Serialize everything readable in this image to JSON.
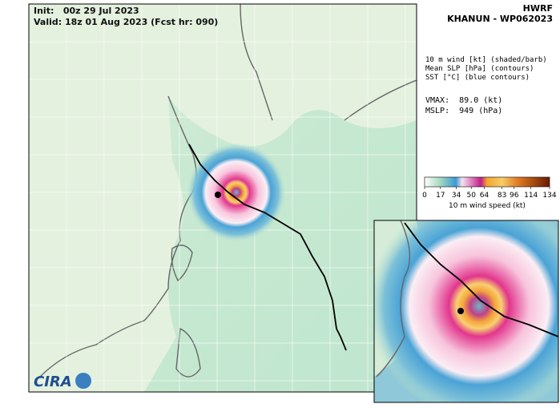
{
  "header": {
    "model": "HWRF",
    "storm": "KHANUN - WP062023"
  },
  "map": {
    "init": "Init:   00z 29 Jul 2023",
    "valid": "Valid: 18z 01 Aug 2023 (Fcst hr: 090)"
  },
  "legend": {
    "lines": [
      "10 m wind [kt] (shaded/barb)",
      "Mean SLP [hPa] (contours)",
      "SST [°C] (blue contours)"
    ],
    "vmax": "VMAX:  89.0 (kt)",
    "mslp": "MSLP:  949 (hPa)"
  },
  "colorbar": {
    "ticks": [
      0,
      17,
      34,
      50,
      64,
      83,
      96,
      114,
      134
    ],
    "label": "10 m wind speed (kt)"
  },
  "logo": "CIRA"
}
